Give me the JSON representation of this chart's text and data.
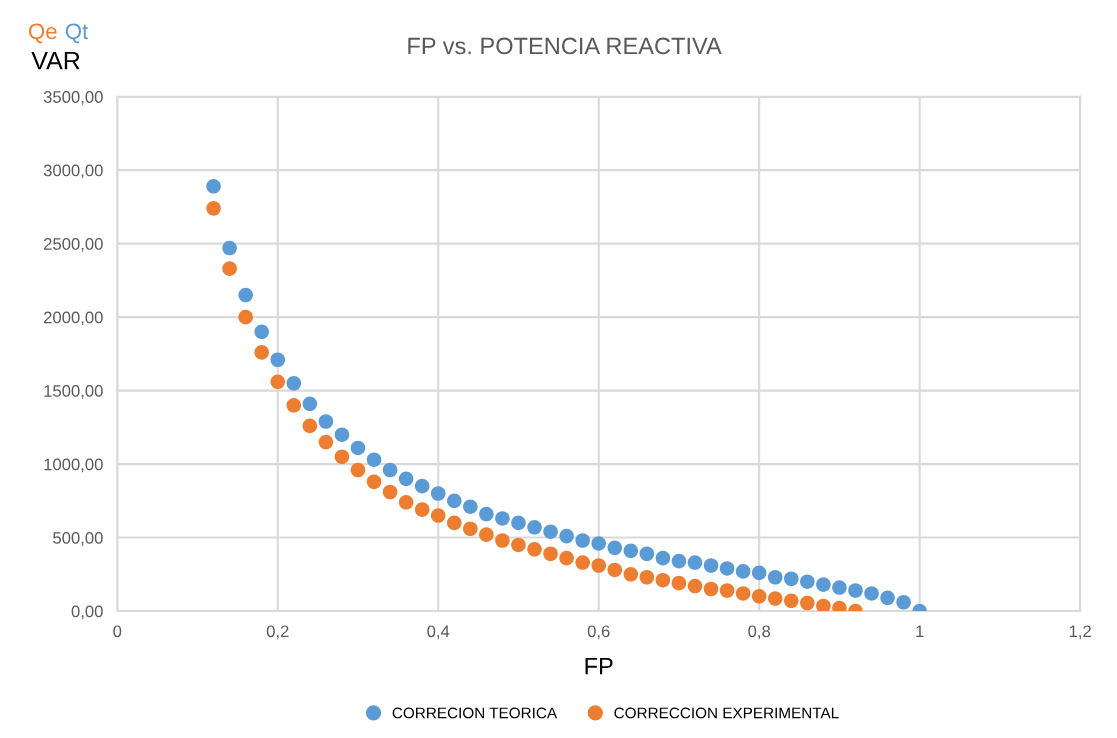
{
  "chart_data": {
    "type": "scatter",
    "title": "FP vs. POTENCIA REACTIVA",
    "xlabel": "FP",
    "ylabel": "VAR",
    "annotations": [
      "Qe",
      "Qt"
    ],
    "series": [
      {
        "name": "CORRECION TEORICA",
        "color": "#5b9bd5",
        "x": [
          0.12,
          0.14,
          0.16,
          0.18,
          0.2,
          0.22,
          0.24,
          0.26,
          0.28,
          0.3,
          0.32,
          0.34,
          0.36,
          0.38,
          0.4,
          0.42,
          0.44,
          0.46,
          0.48,
          0.5,
          0.52,
          0.54,
          0.56,
          0.58,
          0.6,
          0.62,
          0.64,
          0.66,
          0.68,
          0.7,
          0.72,
          0.74,
          0.76,
          0.78,
          0.8,
          0.82,
          0.84,
          0.86,
          0.88,
          0.9,
          0.92,
          0.94,
          0.96,
          0.98,
          1.0
        ],
        "values": [
          2890,
          2470,
          2150,
          1900,
          1710,
          1550,
          1410,
          1290,
          1200,
          1110,
          1030,
          960,
          900,
          850,
          800,
          750,
          710,
          660,
          630,
          600,
          570,
          540,
          510,
          480,
          460,
          430,
          410,
          390,
          360,
          340,
          330,
          310,
          290,
          270,
          260,
          230,
          220,
          200,
          180,
          160,
          140,
          120,
          90,
          60,
          0
        ]
      },
      {
        "name": "CORRECCION EXPERIMENTAL",
        "color": "#ed7d31",
        "x": [
          0.12,
          0.14,
          0.16,
          0.18,
          0.2,
          0.22,
          0.24,
          0.26,
          0.28,
          0.3,
          0.32,
          0.34,
          0.36,
          0.38,
          0.4,
          0.42,
          0.44,
          0.46,
          0.48,
          0.5,
          0.52,
          0.54,
          0.56,
          0.58,
          0.6,
          0.62,
          0.64,
          0.66,
          0.68,
          0.7,
          0.72,
          0.74,
          0.76,
          0.78,
          0.8,
          0.82,
          0.84,
          0.86,
          0.88,
          0.9,
          0.92
        ],
        "values": [
          2740,
          2330,
          2000,
          1760,
          1560,
          1400,
          1260,
          1150,
          1050,
          960,
          880,
          810,
          740,
          690,
          650,
          600,
          560,
          520,
          480,
          450,
          420,
          390,
          360,
          330,
          310,
          280,
          250,
          230,
          210,
          190,
          170,
          150,
          140,
          120,
          100,
          85,
          70,
          55,
          35,
          20,
          0
        ]
      }
    ],
    "xlim": [
      0,
      1.2
    ],
    "xticks": [
      {
        "value": 0,
        "label": "0"
      },
      {
        "value": 0.2,
        "label": "0,2"
      },
      {
        "value": 0.4,
        "label": "0,4"
      },
      {
        "value": 0.6,
        "label": "0,6"
      },
      {
        "value": 0.8,
        "label": "0,8"
      },
      {
        "value": 1.0,
        "label": "1"
      },
      {
        "value": 1.2,
        "label": "1,2"
      }
    ],
    "ylim": [
      0,
      3500
    ],
    "yticks": [
      {
        "value": 0,
        "label": "0,00"
      },
      {
        "value": 500,
        "label": "500,00"
      },
      {
        "value": 1000,
        "label": "1000,00"
      },
      {
        "value": 1500,
        "label": "1500,00"
      },
      {
        "value": 2000,
        "label": "2000,00"
      },
      {
        "value": 2500,
        "label": "2500,00"
      },
      {
        "value": 3000,
        "label": "3000,00"
      },
      {
        "value": 3500,
        "label": "3500,00"
      }
    ],
    "grid": true,
    "legend": "bottom",
    "marker": "circle"
  }
}
